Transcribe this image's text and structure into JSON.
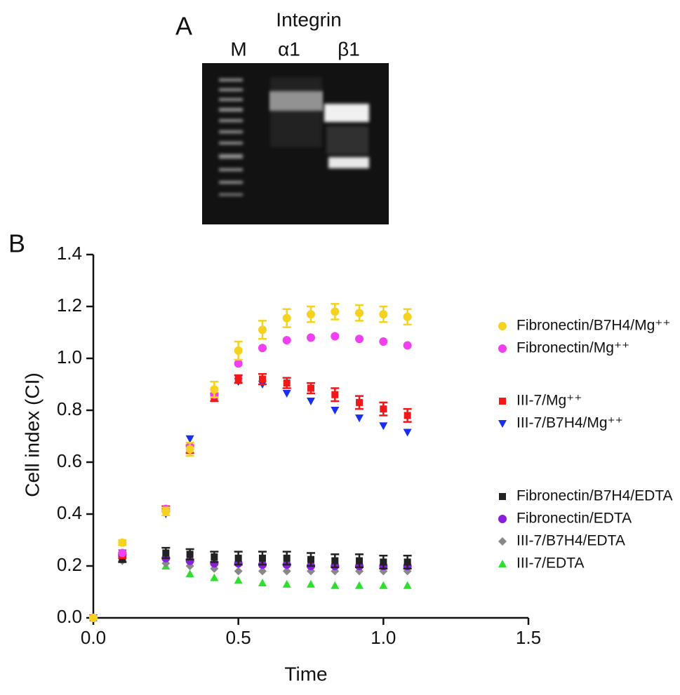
{
  "panel_a": {
    "label": "A",
    "heading": "Integrin",
    "lanes": [
      "M",
      "α1",
      "β1"
    ]
  },
  "panel_b_label": "B",
  "chart_data": {
    "type": "scatter",
    "x_label": "Time",
    "y_label": "Cell index (CI)",
    "xlim": [
      0,
      1.5
    ],
    "xticks": [
      {
        "value": 0,
        "label": "0.0"
      },
      0.5,
      {
        "value": 1,
        "label": "1.0"
      },
      1.5
    ],
    "ylim": [
      0,
      1.4
    ],
    "yticks": [
      {
        "value": 0,
        "label": "0.0"
      },
      0.2,
      0.4,
      0.6,
      0.8,
      {
        "value": 1,
        "label": "1.0"
      },
      1.2,
      1.4
    ],
    "x": [
      0,
      0.1,
      0.25,
      0.333,
      0.417,
      0.5,
      0.583,
      0.667,
      0.75,
      0.833,
      0.917,
      1.0,
      1.083
    ],
    "series": [
      {
        "name": "Fibronectin/B7H4/Mg⁺⁺",
        "color": "#f5d21f",
        "marker": "circle",
        "values": [
          0,
          0.29,
          0.41,
          0.65,
          0.88,
          1.03,
          1.11,
          1.155,
          1.17,
          1.18,
          1.175,
          1.17,
          1.16
        ],
        "errors": [
          0,
          0.01,
          0.015,
          0.025,
          0.03,
          0.035,
          0.035,
          0.035,
          0.03,
          0.03,
          0.03,
          0.03,
          0.03
        ]
      },
      {
        "name": "Fibronectin/Mg⁺⁺",
        "color": "#f040f0",
        "marker": "circle",
        "values": [
          0,
          0.25,
          0.42,
          0.66,
          0.86,
          0.98,
          1.04,
          1.07,
          1.08,
          1.085,
          1.075,
          1.065,
          1.05
        ]
      },
      {
        "name": "III-7/Mg⁺⁺",
        "color": "#f01818",
        "marker": "square",
        "values": [
          0,
          0.24,
          0.42,
          0.65,
          0.85,
          0.92,
          0.92,
          0.905,
          0.885,
          0.86,
          0.83,
          0.805,
          0.78
        ],
        "errors": [
          0,
          0.01,
          0.01,
          0.015,
          0.015,
          0.015,
          0.02,
          0.02,
          0.02,
          0.025,
          0.025,
          0.025,
          0.025
        ]
      },
      {
        "name": "III-7/B7H4/Mg⁺⁺",
        "color": "#1a2ef0",
        "marker": "triangle-down",
        "values": [
          0,
          0.25,
          0.4,
          0.69,
          0.85,
          0.91,
          0.9,
          0.865,
          0.835,
          0.8,
          0.77,
          0.74,
          0.715
        ]
      },
      {
        "name": "Fibronectin/B7H4/EDTA",
        "color": "#222222",
        "marker": "square",
        "values": [
          0,
          0.23,
          0.25,
          0.245,
          0.235,
          0.23,
          0.23,
          0.23,
          0.225,
          0.22,
          0.22,
          0.215,
          0.215
        ],
        "errors": [
          0,
          0.015,
          0.02,
          0.02,
          0.02,
          0.025,
          0.025,
          0.025,
          0.025,
          0.025,
          0.025,
          0.025,
          0.025
        ]
      },
      {
        "name": "Fibronectin/EDTA",
        "color": "#8a1ee0",
        "marker": "circle",
        "values": [
          0,
          0.24,
          0.23,
          0.22,
          0.21,
          0.21,
          0.205,
          0.205,
          0.2,
          0.2,
          0.2,
          0.2,
          0.2
        ]
      },
      {
        "name": "III-7/B7H4/EDTA",
        "color": "#888888",
        "marker": "diamond",
        "values": [
          0,
          0.22,
          0.21,
          0.2,
          0.19,
          0.18,
          0.18,
          0.18,
          0.18,
          0.18,
          0.18,
          0.18,
          0.18
        ]
      },
      {
        "name": "III-7/EDTA",
        "color": "#2ee02e",
        "marker": "triangle-up",
        "values": [
          0,
          0.23,
          0.2,
          0.17,
          0.155,
          0.145,
          0.135,
          0.13,
          0.13,
          0.125,
          0.125,
          0.125,
          0.125
        ]
      }
    ]
  }
}
